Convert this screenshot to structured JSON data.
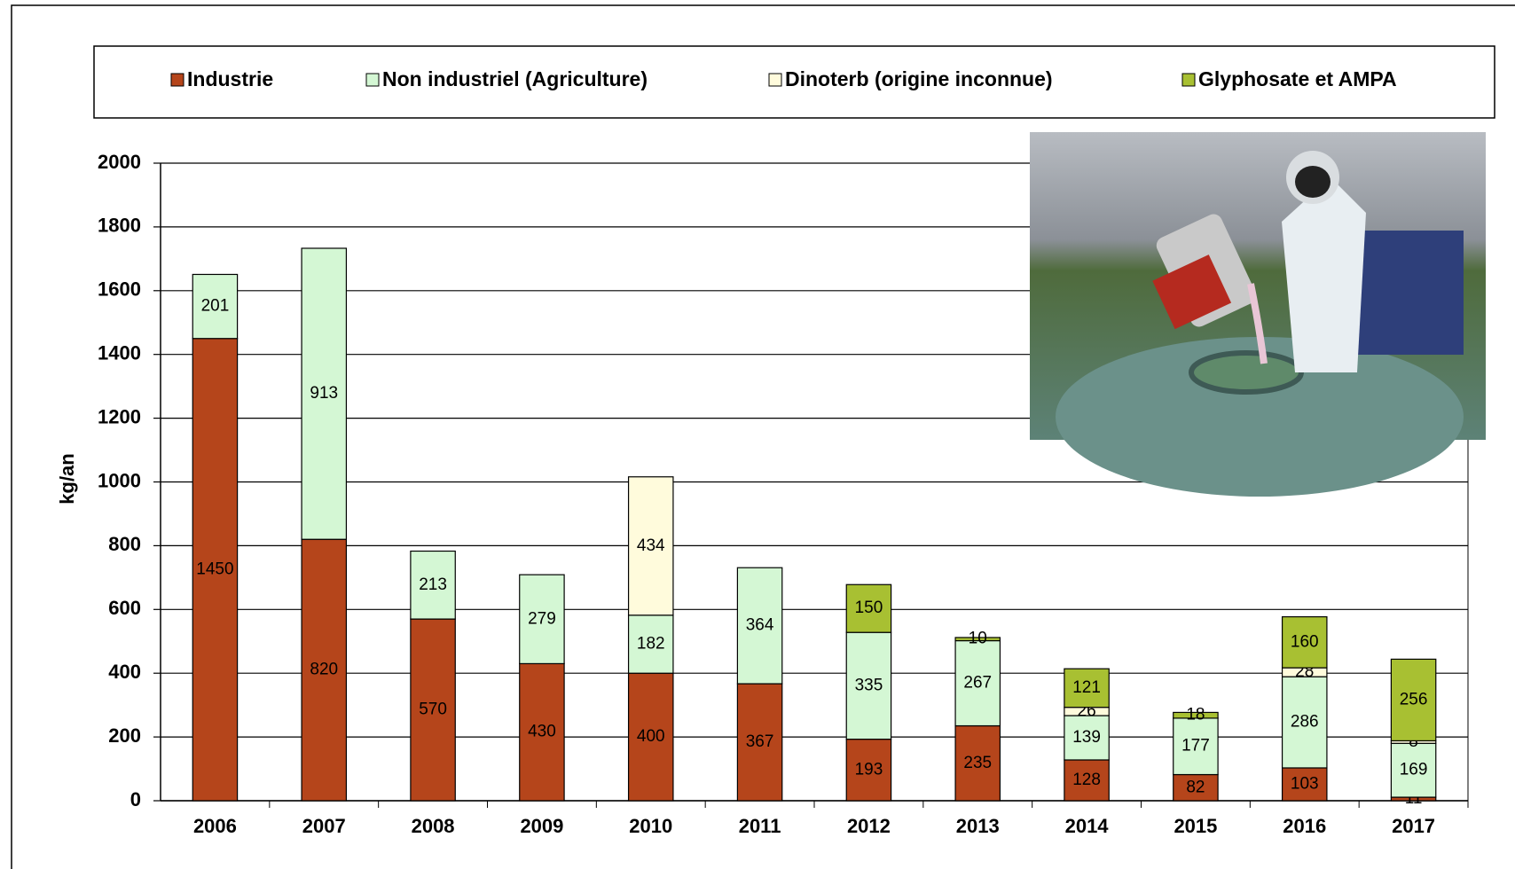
{
  "chart_data": {
    "type": "stacked_bar",
    "y_label": "kg/an",
    "categories": [
      "2006",
      "2007",
      "2008",
      "2009",
      "2010",
      "2011",
      "2012",
      "2013",
      "2014",
      "2015",
      "2016",
      "2017"
    ],
    "series": [
      {
        "name": "Industrie",
        "color": "#b5451b",
        "values": [
          1450,
          820,
          570,
          430,
          400,
          367,
          193,
          235,
          128,
          82,
          103,
          11
        ]
      },
      {
        "name": "Non industriel (Agriculture)",
        "color": "#d4f7d4",
        "values": [
          201,
          913,
          213,
          279,
          182,
          364,
          335,
          267,
          139,
          177,
          286,
          169
        ]
      },
      {
        "name": "Dinoterb (origine inconnue)",
        "color": "#fffbdc",
        "values": [
          null,
          null,
          null,
          null,
          434,
          null,
          null,
          null,
          26,
          null,
          28,
          8
        ]
      },
      {
        "name": "Glyphosate et AMPA",
        "color": "#a8c032",
        "values": [
          null,
          null,
          null,
          null,
          null,
          null,
          150,
          10,
          121,
          18,
          160,
          256
        ]
      }
    ],
    "ylim": [
      0,
      2000
    ],
    "yticks": [
      0,
      200,
      400,
      600,
      800,
      1000,
      1200,
      1400,
      1600,
      1800,
      2000
    ],
    "grid": true,
    "legend": "top"
  }
}
